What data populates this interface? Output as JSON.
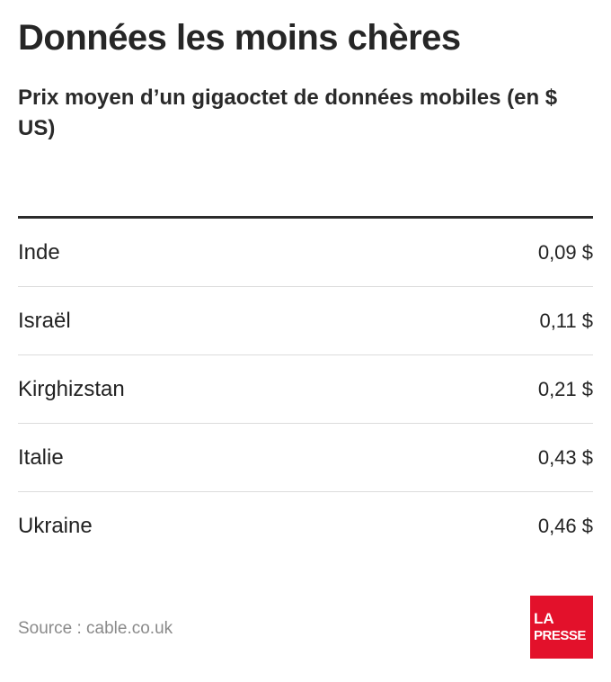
{
  "title": "Données les moins chères",
  "subtitle": "Prix moyen d’un gigaoctet de données mobiles (en $ US)",
  "chart_data": {
    "type": "table",
    "columns": [
      "",
      ""
    ],
    "rows": [
      {
        "country": "Inde",
        "price_label": "0,09 $",
        "value": 0.09
      },
      {
        "country": "Israël",
        "price_label": "0,11 $",
        "value": 0.11
      },
      {
        "country": "Kirghizstan",
        "price_label": "0,21 $",
        "value": 0.21
      },
      {
        "country": "Italie",
        "price_label": "0,43 $",
        "value": 0.43
      },
      {
        "country": "Ukraine",
        "price_label": "0,46 $",
        "value": 0.46
      }
    ]
  },
  "source": "Source : cable.co.uk",
  "logo": {
    "line1": "LA",
    "line2": "PRESSE",
    "color": "#e3112b"
  }
}
